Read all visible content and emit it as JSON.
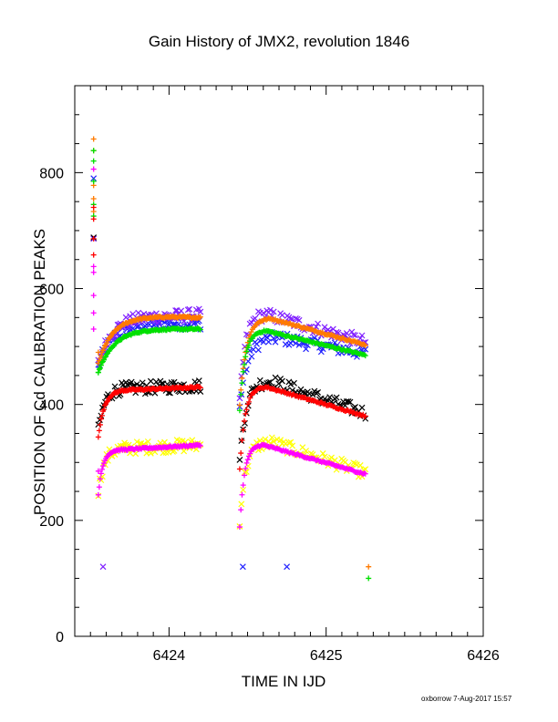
{
  "chart_data": {
    "type": "scatter",
    "title": "Gain History of JMX2, revolution 1846",
    "xlabel": "TIME IN IJD",
    "ylabel": "POSITION OF Cd CALIBRATION PEAKS",
    "xlim": [
      6423.4,
      6426.0
    ],
    "ylim": [
      0,
      950
    ],
    "xticks": [
      6424,
      6425,
      6426
    ],
    "yticks": [
      0,
      200,
      400,
      600,
      800
    ],
    "grid": false,
    "legend": "none",
    "series": [
      {
        "color": "#ff7a00",
        "marker": "plus",
        "style": "smooth",
        "segments": [
          {
            "x0": 6423.55,
            "x1": 6424.2,
            "y0": 470,
            "peak_x": 6424.0,
            "peak_y": 551,
            "y1": 550
          },
          {
            "x0": 6424.45,
            "x1": 6425.25,
            "y0": 400,
            "peak_x": 6424.65,
            "peak_y": 548,
            "y1": 503
          }
        ],
        "outliers": [
          [
            6423.52,
            858
          ],
          [
            6423.52,
            838
          ],
          [
            6423.52,
            778
          ],
          [
            6423.52,
            755
          ],
          [
            6423.52,
            733
          ],
          [
            6423.55,
            490
          ],
          [
            6425.27,
            120
          ]
        ]
      },
      {
        "color": "#00e000",
        "marker": "plus",
        "style": "smooth",
        "segments": [
          {
            "x0": 6423.55,
            "x1": 6424.2,
            "y0": 455,
            "peak_x": 6424.05,
            "peak_y": 530,
            "y1": 530
          },
          {
            "x0": 6424.45,
            "x1": 6425.25,
            "y0": 390,
            "peak_x": 6424.62,
            "peak_y": 527,
            "y1": 485
          }
        ],
        "outliers": [
          [
            6423.52,
            838
          ],
          [
            6423.52,
            820
          ],
          [
            6423.52,
            785
          ],
          [
            6423.52,
            745
          ],
          [
            6423.52,
            725
          ],
          [
            6423.55,
            455
          ],
          [
            6425.27,
            100
          ]
        ]
      },
      {
        "color": "#ff0000",
        "marker": "plus",
        "style": "smooth",
        "segments": [
          {
            "x0": 6423.55,
            "x1": 6424.2,
            "y0": 345,
            "peak_x": 6423.75,
            "peak_y": 425,
            "y1": 430
          },
          {
            "x0": 6424.45,
            "x1": 6425.25,
            "y0": 290,
            "peak_x": 6424.62,
            "peak_y": 430,
            "y1": 380
          }
        ],
        "outliers": [
          [
            6423.52,
            740
          ],
          [
            6423.52,
            720
          ],
          [
            6423.52,
            686
          ],
          [
            6423.52,
            658
          ]
        ]
      },
      {
        "color": "#ff00ff",
        "marker": "plus",
        "style": "smooth",
        "segments": [
          {
            "x0": 6423.55,
            "x1": 6424.2,
            "y0": 245,
            "peak_x": 6423.7,
            "peak_y": 322,
            "y1": 330
          },
          {
            "x0": 6424.45,
            "x1": 6425.25,
            "y0": 188,
            "peak_x": 6424.6,
            "peak_y": 330,
            "y1": 280
          }
        ],
        "outliers": [
          [
            6423.52,
            806
          ],
          [
            6423.52,
            638
          ],
          [
            6423.52,
            628
          ],
          [
            6423.52,
            588
          ],
          [
            6423.52,
            558
          ],
          [
            6423.52,
            530
          ],
          [
            6423.55,
            285
          ]
        ]
      },
      {
        "color": "#2020ff",
        "marker": "cross",
        "style": "noisy",
        "segments": [
          {
            "x0": 6423.55,
            "x1": 6424.2,
            "y0": 465,
            "peak_x": 6424.0,
            "peak_y": 540,
            "y1": 540
          },
          {
            "x0": 6424.45,
            "x1": 6425.25,
            "y0": 395,
            "peak_x": 6424.7,
            "peak_y": 515,
            "y1": 488
          }
        ],
        "outliers": [
          [
            6423.52,
            790
          ],
          [
            6424.47,
            120
          ],
          [
            6424.75,
            120
          ]
        ]
      },
      {
        "color": "#8020ff",
        "marker": "cross",
        "style": "noisy",
        "segments": [
          {
            "x0": 6423.55,
            "x1": 6424.2,
            "y0": 470,
            "peak_x": 6424.0,
            "peak_y": 552,
            "y1": 555
          },
          {
            "x0": 6424.45,
            "x1": 6425.25,
            "y0": 400,
            "peak_x": 6424.62,
            "peak_y": 555,
            "y1": 508
          }
        ],
        "outliers": [
          [
            6423.52,
            686
          ],
          [
            6423.58,
            120
          ]
        ]
      },
      {
        "color": "#000000",
        "marker": "cross",
        "style": "noisy",
        "segments": [
          {
            "x0": 6423.55,
            "x1": 6424.2,
            "y0": 355,
            "peak_x": 6423.75,
            "peak_y": 428,
            "y1": 432
          },
          {
            "x0": 6424.45,
            "x1": 6425.25,
            "y0": 300,
            "peak_x": 6424.65,
            "peak_y": 440,
            "y1": 385
          }
        ],
        "outliers": [
          [
            6423.52,
            688
          ]
        ]
      },
      {
        "color": "#ffff00",
        "marker": "cross",
        "style": "noisy",
        "segments": [
          {
            "x0": 6423.55,
            "x1": 6424.2,
            "y0": 250,
            "peak_x": 6423.75,
            "peak_y": 325,
            "y1": 330
          },
          {
            "x0": 6424.45,
            "x1": 6425.25,
            "y0": 200,
            "peak_x": 6424.65,
            "peak_y": 335,
            "y1": 282
          }
        ],
        "outliers": []
      }
    ]
  },
  "footer": "oxborrow  7-Aug-2017 15:57"
}
